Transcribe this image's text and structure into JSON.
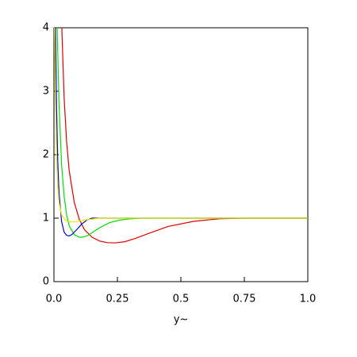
{
  "chart_data": {
    "type": "line",
    "x_label": "y~",
    "xlim": [
      0,
      1
    ],
    "ylim": [
      0,
      4
    ],
    "xticks": [
      {
        "value": 0,
        "label": "0.0"
      },
      0.25,
      0.5,
      0.75,
      {
        "value": 1,
        "label": "1.0"
      }
    ],
    "yticks": [
      0,
      1,
      2,
      3,
      4
    ],
    "series": [
      {
        "color": "#e00000",
        "x": [
          0.031,
          0.04,
          0.05,
          0.06,
          0.08,
          0.1,
          0.12,
          0.15,
          0.18,
          0.21,
          0.24,
          0.28,
          0.32,
          0.38,
          0.45,
          0.55,
          0.65,
          0.75,
          0.85,
          1.0
        ],
        "values": [
          4,
          2.9,
          2.2,
          1.75,
          1.25,
          0.98,
          0.82,
          0.7,
          0.64,
          0.615,
          0.61,
          0.63,
          0.68,
          0.77,
          0.87,
          0.95,
          0.99,
          1.0,
          1.0,
          1.0
        ]
      },
      {
        "color": "#00e000",
        "x": [
          0.0125,
          0.02,
          0.03,
          0.04,
          0.05,
          0.06,
          0.08,
          0.1,
          0.11,
          0.13,
          0.15,
          0.18,
          0.22,
          0.26,
          0.3,
          0.35,
          0.5,
          0.75,
          1.0
        ],
        "values": [
          4,
          2.8,
          1.85,
          1.35,
          1.05,
          0.88,
          0.74,
          0.7,
          0.7,
          0.72,
          0.77,
          0.85,
          0.93,
          0.97,
          0.99,
          1.0,
          1.0,
          1.0,
          1.0
        ]
      },
      {
        "color": "#0000e0",
        "x": [
          0.006,
          0.01,
          0.015,
          0.02,
          0.03,
          0.04,
          0.05,
          0.06,
          0.07,
          0.09,
          0.11,
          0.13,
          0.15,
          0.18,
          0.25,
          0.5,
          0.75,
          1.0
        ],
        "values": [
          4,
          2.8,
          1.9,
          1.4,
          0.95,
          0.78,
          0.73,
          0.72,
          0.74,
          0.82,
          0.91,
          0.97,
          1.0,
          1.0,
          1.0,
          1.0,
          1.0,
          1.0
        ]
      },
      {
        "color": "#e8e800",
        "x": [
          0.002,
          0.005,
          0.01,
          0.015,
          0.02,
          0.03,
          0.05,
          0.08,
          0.12,
          0.18,
          0.25,
          0.5,
          0.75,
          1.0
        ],
        "values": [
          4,
          3,
          2,
          1.5,
          1.25,
          1.05,
          0.95,
          0.94,
          0.97,
          1.0,
          1.0,
          1.0,
          1.0,
          1.0
        ]
      }
    ]
  }
}
